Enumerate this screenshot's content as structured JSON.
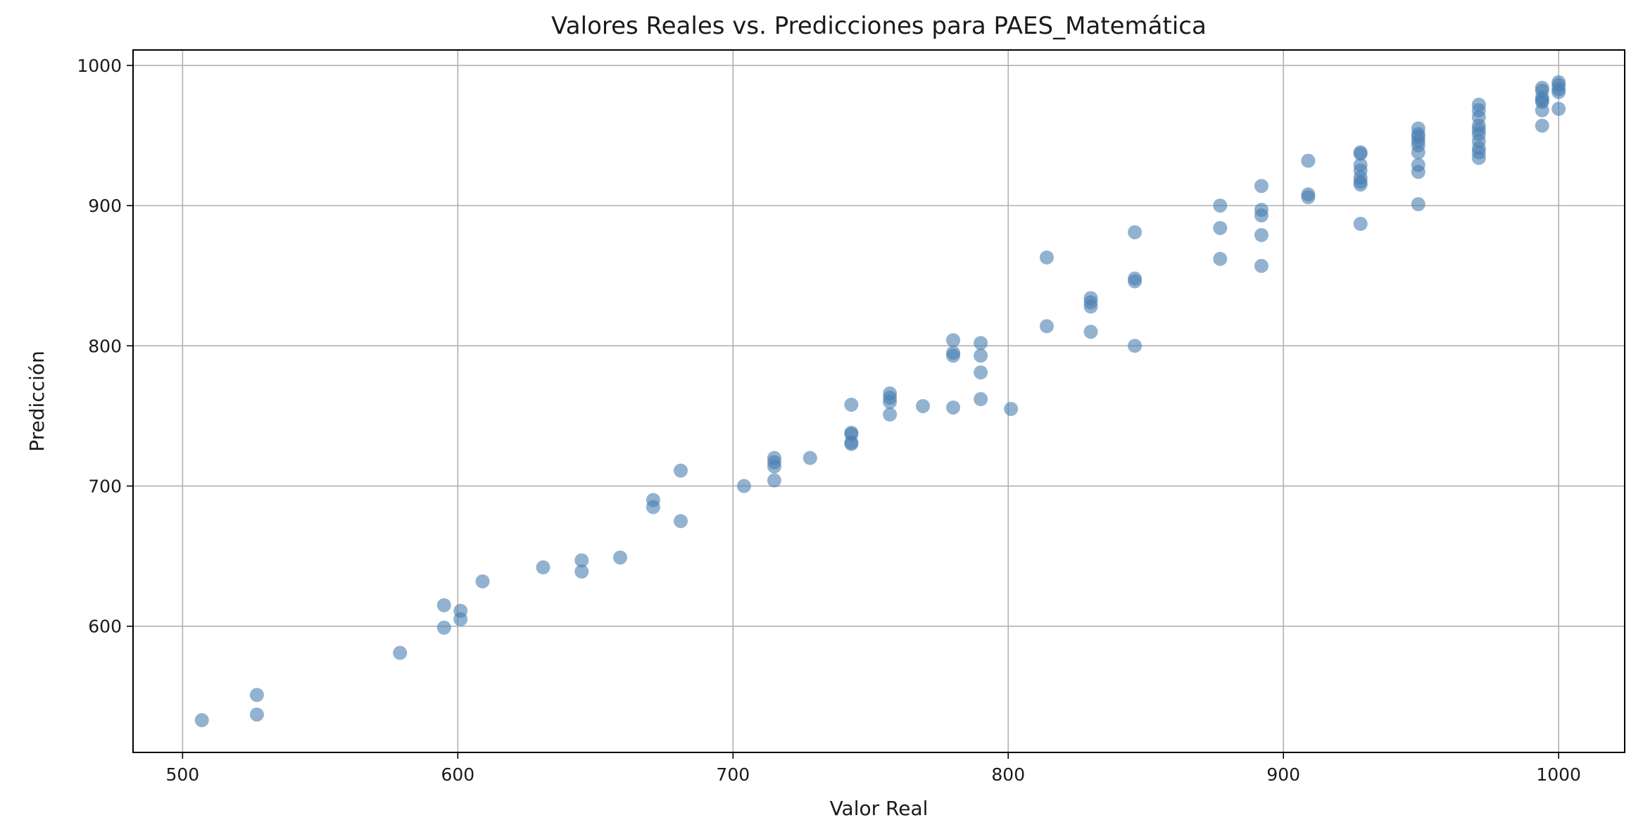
{
  "chart_data": {
    "type": "scatter",
    "title": "Valores Reales vs. Predicciones para PAES_Matemática",
    "xlabel": "Valor Real",
    "ylabel": "Predicción",
    "xlim": [
      482,
      1024
    ],
    "ylim": [
      510,
      1011
    ],
    "xticks": [
      500,
      600,
      700,
      800,
      900,
      1000
    ],
    "yticks": [
      600,
      700,
      800,
      900,
      1000
    ],
    "grid": true,
    "marker_color": "#4a7fb0",
    "marker_alpha": 0.6,
    "points": [
      [
        507,
        533
      ],
      [
        527,
        551
      ],
      [
        527,
        537
      ],
      [
        579,
        581
      ],
      [
        595,
        615
      ],
      [
        595,
        599
      ],
      [
        601,
        611
      ],
      [
        601,
        605
      ],
      [
        609,
        632
      ],
      [
        631,
        642
      ],
      [
        645,
        647
      ],
      [
        645,
        639
      ],
      [
        659,
        649
      ],
      [
        671,
        690
      ],
      [
        671,
        685
      ],
      [
        681,
        711
      ],
      [
        681,
        675
      ],
      [
        704,
        700
      ],
      [
        715,
        720
      ],
      [
        715,
        717
      ],
      [
        715,
        714
      ],
      [
        715,
        704
      ],
      [
        728,
        720
      ],
      [
        743,
        758
      ],
      [
        743,
        738
      ],
      [
        743,
        737
      ],
      [
        743,
        731
      ],
      [
        743,
        730
      ],
      [
        757,
        766
      ],
      [
        757,
        763
      ],
      [
        757,
        760
      ],
      [
        757,
        751
      ],
      [
        769,
        757
      ],
      [
        780,
        804
      ],
      [
        780,
        795
      ],
      [
        780,
        793
      ],
      [
        780,
        756
      ],
      [
        790,
        802
      ],
      [
        790,
        793
      ],
      [
        790,
        781
      ],
      [
        790,
        762
      ],
      [
        801,
        755
      ],
      [
        814,
        863
      ],
      [
        814,
        814
      ],
      [
        830,
        834
      ],
      [
        830,
        831
      ],
      [
        830,
        828
      ],
      [
        830,
        810
      ],
      [
        846,
        881
      ],
      [
        846,
        848
      ],
      [
        846,
        846
      ],
      [
        846,
        800
      ],
      [
        877,
        900
      ],
      [
        877,
        884
      ],
      [
        877,
        862
      ],
      [
        892,
        914
      ],
      [
        892,
        897
      ],
      [
        892,
        893
      ],
      [
        892,
        879
      ],
      [
        892,
        857
      ],
      [
        909,
        932
      ],
      [
        909,
        908
      ],
      [
        909,
        906
      ],
      [
        928,
        938
      ],
      [
        928,
        937
      ],
      [
        928,
        929
      ],
      [
        928,
        925
      ],
      [
        928,
        920
      ],
      [
        928,
        917
      ],
      [
        928,
        915
      ],
      [
        928,
        887
      ],
      [
        949,
        955
      ],
      [
        949,
        951
      ],
      [
        949,
        949
      ],
      [
        949,
        946
      ],
      [
        949,
        943
      ],
      [
        949,
        938
      ],
      [
        949,
        929
      ],
      [
        949,
        924
      ],
      [
        949,
        901
      ],
      [
        971,
        972
      ],
      [
        971,
        968
      ],
      [
        971,
        963
      ],
      [
        971,
        957
      ],
      [
        971,
        954
      ],
      [
        971,
        951
      ],
      [
        971,
        946
      ],
      [
        971,
        941
      ],
      [
        971,
        938
      ],
      [
        971,
        934
      ],
      [
        994,
        984
      ],
      [
        994,
        982
      ],
      [
        994,
        977
      ],
      [
        994,
        975
      ],
      [
        994,
        974
      ],
      [
        994,
        968
      ],
      [
        994,
        957
      ],
      [
        1000,
        988
      ],
      [
        1000,
        986
      ],
      [
        1000,
        983
      ],
      [
        1000,
        981
      ],
      [
        1000,
        969
      ]
    ]
  }
}
